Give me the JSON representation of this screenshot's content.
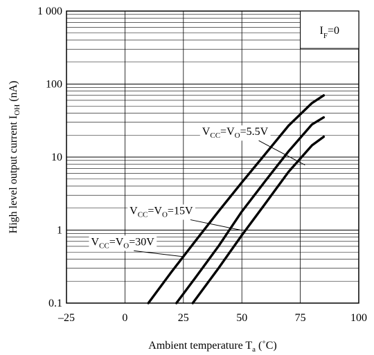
{
  "chart_data": {
    "type": "line",
    "xlabel": "Ambient temperature Ta (˚C)",
    "xlabel_parts": {
      "main": "Ambient temperature T",
      "sub": "a",
      "unit": " (˚C)"
    },
    "ylabel": "High level output current IOH (nA)",
    "ylabel_parts": {
      "main": "High level output current I",
      "sub": "OH",
      "unit": " (nA)"
    },
    "xlim": [
      -25,
      100
    ],
    "ylim": [
      0.1,
      1000
    ],
    "y_scale": "log",
    "grid": true,
    "x_ticks": [
      {
        "value": -25,
        "label": "–25"
      },
      {
        "value": 0,
        "label": "0"
      },
      {
        "value": 25,
        "label": "25"
      },
      {
        "value": 50,
        "label": "50"
      },
      {
        "value": 75,
        "label": "75"
      },
      {
        "value": 100,
        "label": "100"
      }
    ],
    "y_ticks": [
      {
        "value": 0.1,
        "label": "0.1"
      },
      {
        "value": 1,
        "label": "1"
      },
      {
        "value": 10,
        "label": "10"
      },
      {
        "value": 100,
        "label": "100"
      },
      {
        "value": 1000,
        "label": "1 000"
      }
    ],
    "condition": {
      "main": "I",
      "sub": "F",
      "rest": "=0"
    },
    "series": [
      {
        "label": {
          "a": "V",
          "a_sub": "CC",
          "b": "=V",
          "b_sub": "O",
          "c": "=5.5V"
        },
        "x": [
          10,
          20,
          30,
          40,
          50,
          60,
          70,
          80,
          85
        ],
        "y": [
          0.1,
          0.27,
          0.7,
          1.8,
          4.5,
          11,
          27,
          55,
          70
        ]
      },
      {
        "label": {
          "a": "V",
          "a_sub": "CC",
          "b": "=V",
          "b_sub": "O",
          "c": "=15V"
        },
        "x": [
          22,
          30,
          40,
          50,
          60,
          70,
          80,
          85
        ],
        "y": [
          0.1,
          0.22,
          0.6,
          1.8,
          4.7,
          12,
          28,
          35
        ]
      },
      {
        "label": {
          "a": "V",
          "a_sub": "CC",
          "b": "=V",
          "b_sub": "O",
          "c": "=30V"
        },
        "x": [
          29,
          40,
          50,
          60,
          70,
          80,
          85
        ],
        "y": [
          0.1,
          0.3,
          0.85,
          2.3,
          6.3,
          14.5,
          19
        ]
      }
    ]
  }
}
